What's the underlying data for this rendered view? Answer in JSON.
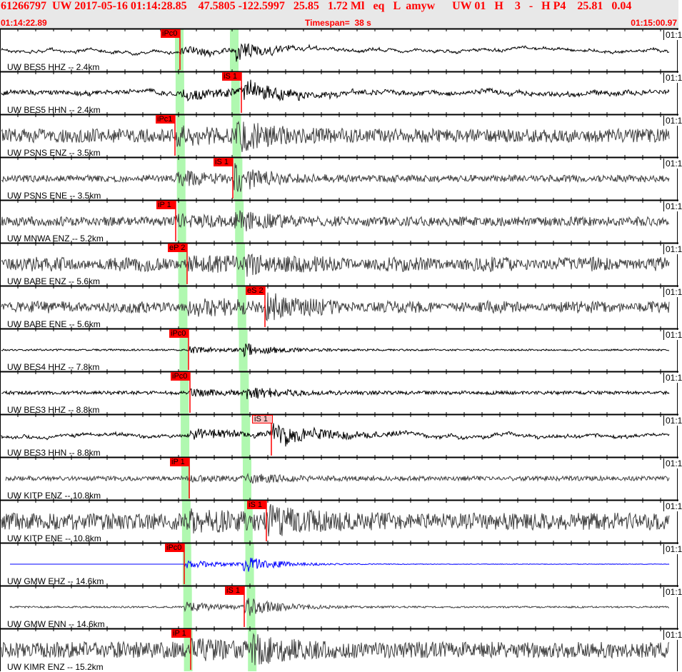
{
  "header": {
    "title": "61266797  UW 2017-05-16 01:14:28.85    47.5805 -122.5997   25.85   1.72 Ml   eq   L  amyw      UW 01   H    3   -   H P4    25.81   0.04",
    "start_time": "01:14:22.89",
    "timespan": "Timespan=  38 s",
    "end_time": "01:15:00.97"
  },
  "colors": {
    "accent": "#ff0000",
    "p_window": "#b0f8b0",
    "trace_broadband": "#000000",
    "trace_strong_motion": "#404040",
    "trace_selected": "#0000ff"
  },
  "channels": [
    {
      "label": "UW BES5 HHZ -- 2.4km",
      "time_label": "01:1",
      "pick": "iPc0"
    },
    {
      "label": "UW BES5 HHN -- 2.4km",
      "time_label": "01:1",
      "pick": "iS 1"
    },
    {
      "label": "UW PSNS ENZ -- 3.5km",
      "time_label": "01:1",
      "pick": "iPc1"
    },
    {
      "label": "UW PSNS ENE -- 3.5km",
      "time_label": "01:1",
      "pick": "iS 1"
    },
    {
      "label": "UW MNWA ENZ -- 5.2km",
      "time_label": "01:1",
      "pick": "iP 1"
    },
    {
      "label": "UW BABE ENZ -- 5.6km",
      "time_label": "01:1",
      "pick": "eP 2"
    },
    {
      "label": "UW BABE ENE -- 5.6km",
      "time_label": "01:1",
      "pick": "eS 2"
    },
    {
      "label": "UW BES4 HHZ -- 7.8km",
      "time_label": "01:1",
      "pick": "iPc0"
    },
    {
      "label": "UW BES3 HHZ -- 8.8km",
      "time_label": "01:1",
      "pick": "iPc0"
    },
    {
      "label": "UW BES3 HHN -- 8.8km",
      "time_label": "01:1",
      "pick": "iS 1"
    },
    {
      "label": "UW KITP ENZ -- 10.8km",
      "time_label": "01:1",
      "pick": "iP 1"
    },
    {
      "label": "UW KITP ENE -- 10.8km",
      "time_label": "01:1",
      "pick": "iS 1"
    },
    {
      "label": "UW GMW EHZ -- 14.6km",
      "time_label": "01:1",
      "pick": "iPc0"
    },
    {
      "label": "UW GMW ENN -- 14.6km",
      "time_label": "01:1",
      "pick": "iS 1"
    },
    {
      "label": "UW KIMR ENZ -- 15.2km",
      "time_label": "01:1",
      "pick": "iP 1"
    }
  ]
}
